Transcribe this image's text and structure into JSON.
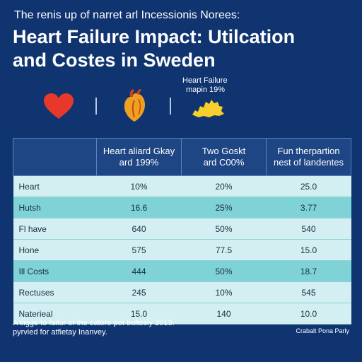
{
  "header": {
    "subtitle": "The renis up of narret arl Incessionis Norees:",
    "title_line1": "Heart Failure Impact: Utilcation",
    "title_line2": "and Costes in Sweden"
  },
  "icons": {
    "heart": "heart-icon",
    "organ": "anatomical-heart-icon",
    "map": "sweden-map-icon",
    "map_label_line1": "Heart Failure",
    "map_label_line2": "mapin 19%"
  },
  "colors": {
    "background": "#0f3470",
    "header_cell": "#1e4584",
    "row_light": "#d3eff1",
    "row_dark": "#7fd3d6",
    "heart": "#e8382c",
    "organ": "#f0a020",
    "map": "#f7cf2d"
  },
  "chart_data": {
    "type": "table",
    "title": "Heart Failure Impact: Utilcation and Costes in Sweden",
    "subtitle": "The renis up of narret arl Incessionis Norees:",
    "columns": [
      {
        "line1": "",
        "line2": ""
      },
      {
        "line1": "Heart aliard Gkay",
        "line2": "ard 199%"
      },
      {
        "line1": "Two Goskt",
        "line2": "ard C00%"
      },
      {
        "line1": "Fun therpartion",
        "line2": "nest of landentes"
      }
    ],
    "rows": [
      {
        "label": "Heart",
        "values": [
          "10%",
          "20%",
          "25.0"
        ]
      },
      {
        "label": "Hutsh",
        "values": [
          "16.6",
          "25%",
          "3.77"
        ]
      },
      {
        "label": "Fl have",
        "values": [
          "640",
          "50%",
          "540"
        ]
      },
      {
        "label": "Hone",
        "values": [
          "575",
          "77.5",
          "15.0"
        ]
      },
      {
        "label": "Ill Costs",
        "values": [
          "444",
          "50%",
          "18.7"
        ]
      },
      {
        "label": "Rectuses",
        "values": [
          "245",
          "10%",
          "545"
        ]
      },
      {
        "label": "Naterieal",
        "values": [
          "15.0",
          "140",
          "10.0"
        ]
      }
    ]
  },
  "footer": {
    "note_line1": "A tligge to failur of the catore pot bultosly 2013.",
    "note_line2": "pyrvied for atfietay Inanvey.",
    "source": "Crabalt Pona Parly"
  }
}
